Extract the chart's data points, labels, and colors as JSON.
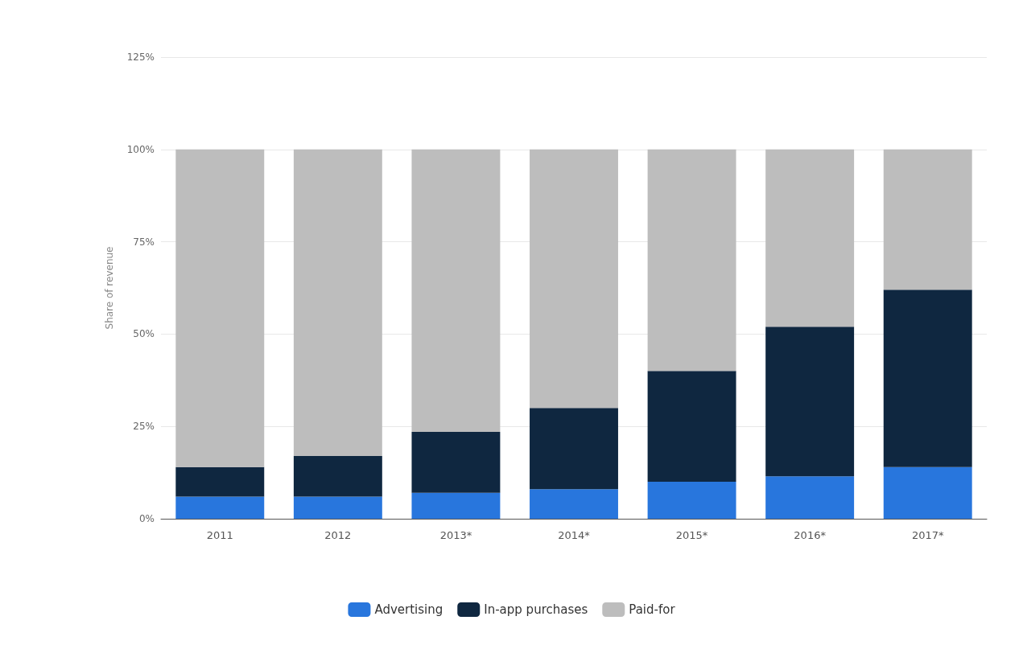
{
  "chart_data": {
    "type": "bar",
    "stacked": true,
    "ylabel": "Share of revenue",
    "categories": [
      "2011",
      "2012",
      "2013*",
      "2014*",
      "2015*",
      "2016*",
      "2017*"
    ],
    "series": [
      {
        "name": "Advertising",
        "color": "#2876dd",
        "values": [
          6,
          6,
          7,
          8,
          10,
          11.5,
          14
        ]
      },
      {
        "name": "In-app purchases",
        "color": "#0f2740",
        "values": [
          8,
          11,
          16.5,
          22,
          30,
          40.5,
          48
        ]
      },
      {
        "name": "Paid-for",
        "color": "#bdbdbd",
        "values": [
          86,
          83,
          76.5,
          70,
          60,
          48,
          38
        ]
      }
    ],
    "ylim": [
      0,
      125
    ],
    "yticks": [
      {
        "value": 0,
        "label": "0%"
      },
      {
        "value": 25,
        "label": "25%"
      },
      {
        "value": 50,
        "label": "50%"
      },
      {
        "value": 75,
        "label": "75%"
      },
      {
        "value": 100,
        "label": "100%"
      },
      {
        "value": 125,
        "label": "125%"
      }
    ],
    "grid": "y",
    "legend": "bottom"
  }
}
